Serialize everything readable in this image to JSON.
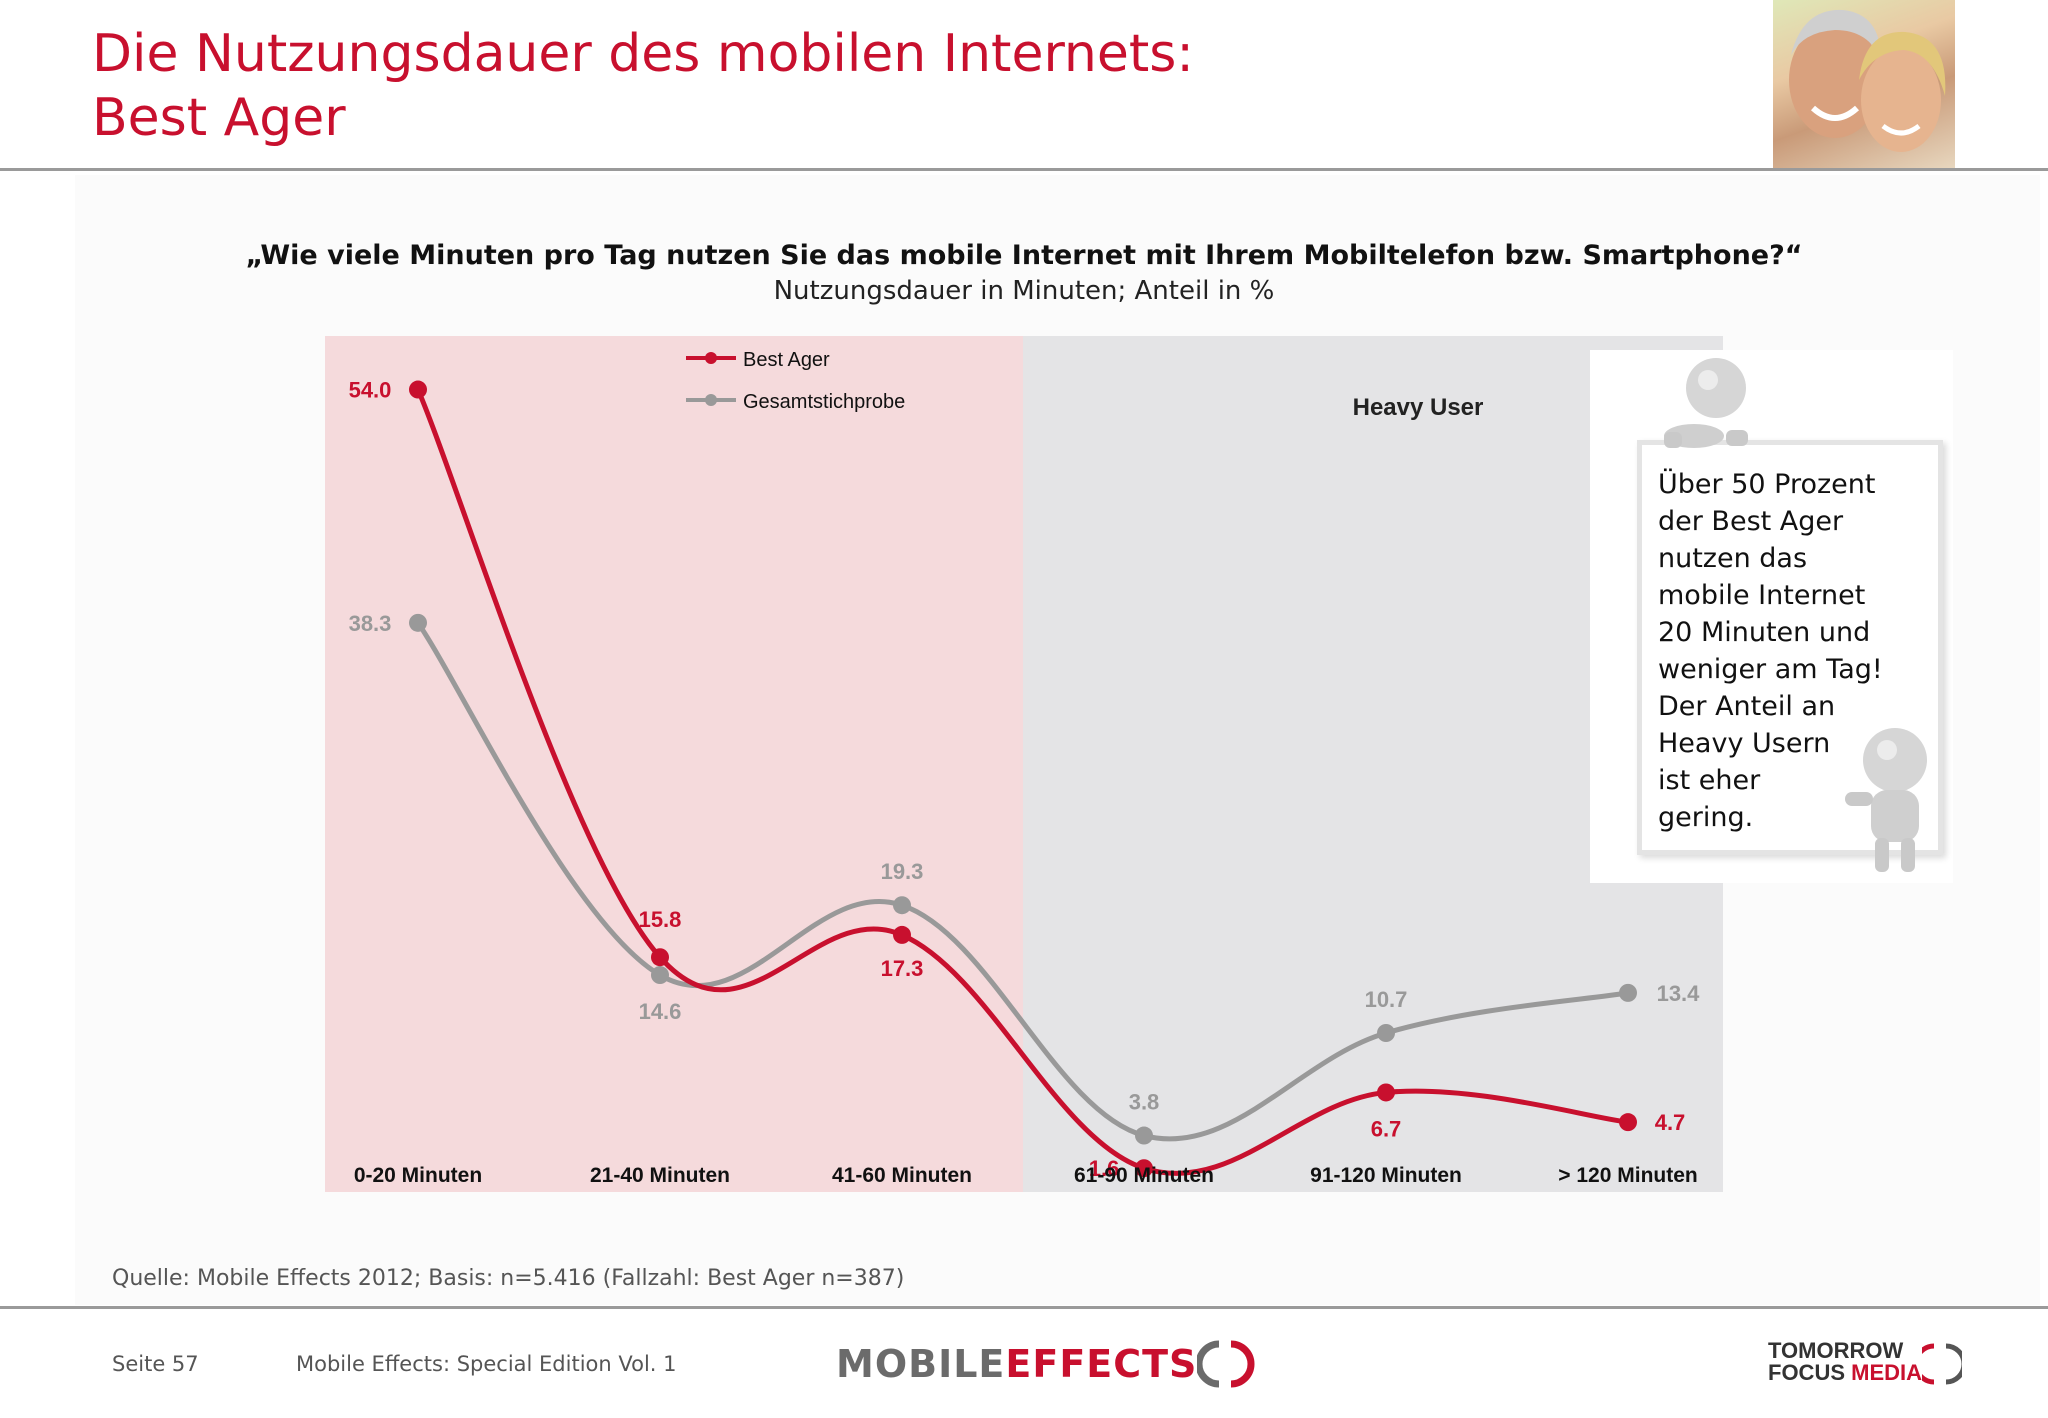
{
  "page": {
    "title_line1": "Die Nutzungsdauer des mobilen Internets:",
    "title_line2": "Best Ager"
  },
  "question": "„Wie viele Minuten pro Tag nutzen Sie das mobile Internet mit Ihrem Mobiltelefon bzw. Smartphone?“",
  "subquestion": "Nutzungsdauer in Minuten; Anteil in %",
  "chart_data": {
    "type": "line",
    "title": "„Wie viele Minuten pro Tag nutzen Sie das mobile Internet mit Ihrem Mobiltelefon bzw. Smartphone?“",
    "subtitle": "Nutzungsdauer in Minuten; Anteil in %",
    "categories": [
      "0-20 Minuten",
      "21-40 Minuten",
      "41-60 Minuten",
      "61-90 Minuten",
      "91-120 Minuten",
      "> 120 Minuten"
    ],
    "series": [
      {
        "name": "Best Ager",
        "color": "#c8102e",
        "values": [
          54.0,
          15.8,
          17.3,
          1.6,
          6.7,
          4.7
        ],
        "labels": [
          "54.0",
          "15.8",
          "17.3",
          "1.6",
          "6.7",
          "4.7"
        ]
      },
      {
        "name": "Gesamtstichprobe",
        "color": "#999999",
        "values": [
          38.3,
          14.6,
          19.3,
          3.8,
          10.7,
          13.4
        ],
        "labels": [
          "38.3",
          "14.6",
          "19.3",
          "3.8",
          "10.7",
          "13.4"
        ]
      }
    ],
    "ylim": [
      0,
      60
    ],
    "legend_position": "top-left",
    "grid": false,
    "region_label": "Heavy User",
    "region_colors": {
      "normal": "#f5dadc",
      "heavy": "#e4e4e6"
    }
  },
  "callout": {
    "text": "Über 50 Prozent\nder Best Ager\nnutzen das\nmobile Internet\n20 Minuten und\nweniger am Tag!\nDer Anteil an\nHeavy Usern\nist eher\ngering."
  },
  "footer": {
    "source": "Quelle: Mobile Effects 2012; Basis: n=5.416 (Fallzahl: Best Ager n=387)",
    "page_number": "Seite 57",
    "document_name": "Mobile Effects: Special Edition Vol. 1",
    "logo_mobile": "MOBILE",
    "logo_effects": "EFFECTS",
    "logo_tomorrow": "TOMORROW",
    "logo_focus": "FOCUS",
    "logo_media": "MEDIA"
  }
}
